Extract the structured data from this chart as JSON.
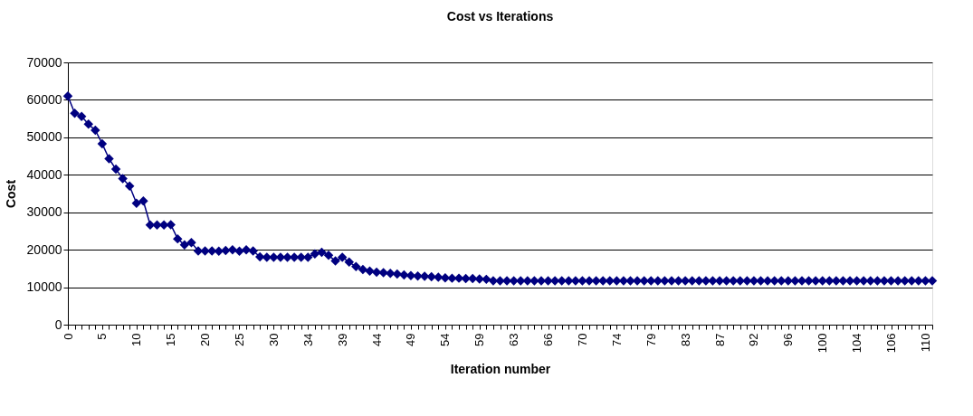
{
  "chart_data": {
    "type": "line",
    "title": "Cost vs Iterations",
    "xlabel": "Iteration number",
    "ylabel": "Cost",
    "categories": [
      "0",
      null,
      null,
      null,
      null,
      "5",
      null,
      null,
      null,
      null,
      "10",
      null,
      null,
      null,
      null,
      "15",
      null,
      null,
      null,
      null,
      "20",
      null,
      null,
      null,
      null,
      "25",
      null,
      null,
      null,
      null,
      "30",
      null,
      null,
      null,
      null,
      "34",
      null,
      null,
      null,
      null,
      "39",
      null,
      null,
      null,
      null,
      "44",
      null,
      null,
      null,
      null,
      "49",
      null,
      null,
      null,
      null,
      "54",
      null,
      null,
      null,
      null,
      "59",
      null,
      null,
      null,
      null,
      "63",
      null,
      null,
      null,
      null,
      "66",
      null,
      null,
      null,
      null,
      "70",
      null,
      null,
      null,
      null,
      "74",
      null,
      null,
      null,
      null,
      "79",
      null,
      null,
      null,
      null,
      "83",
      null,
      null,
      null,
      null,
      "87",
      null,
      null,
      null,
      null,
      "92",
      null,
      null,
      null,
      null,
      "96",
      null,
      null,
      null,
      null,
      "100",
      null,
      null,
      null,
      null,
      "104",
      null,
      null,
      null,
      null,
      "106",
      null,
      null,
      null,
      null,
      "110",
      null
    ],
    "series": [
      {
        "color": "#000080",
        "values": [
          61000,
          56400,
          55600,
          53500,
          51900,
          48300,
          44300,
          41500,
          39000,
          37000,
          32400,
          33000,
          26600,
          26600,
          26600,
          26700,
          22900,
          21300,
          21900,
          19700,
          19700,
          19700,
          19600,
          19800,
          20000,
          19600,
          20000,
          19700,
          18100,
          18000,
          18000,
          18000,
          18000,
          18000,
          18000,
          18000,
          18900,
          19300,
          18500,
          17000,
          18000,
          16700,
          15500,
          14700,
          14300,
          14000,
          13900,
          13700,
          13500,
          13300,
          13100,
          13000,
          12900,
          12800,
          12700,
          12500,
          12400,
          12400,
          12300,
          12300,
          12200,
          12100,
          11700,
          11700,
          11700,
          11700,
          11700,
          11700,
          11700,
          11700,
          11700,
          11700,
          11700,
          11700,
          11700,
          11700,
          11700,
          11700,
          11700,
          11700,
          11700,
          11700,
          11700,
          11700,
          11700,
          11700,
          11700,
          11700,
          11700,
          11700,
          11700,
          11700,
          11700,
          11700,
          11700,
          11700,
          11700,
          11700,
          11700,
          11700,
          11700,
          11700,
          11700,
          11700,
          11700,
          11700,
          11700,
          11700,
          11700,
          11700,
          11700,
          11700,
          11700,
          11700,
          11700,
          11700,
          11700,
          11700,
          11700,
          11700,
          11700,
          11700,
          11700,
          11700,
          11700,
          11700,
          11700
        ]
      }
    ],
    "ylim": [
      0,
      70000
    ],
    "yticks": [
      0,
      10000,
      20000,
      30000,
      40000,
      50000,
      60000,
      70000
    ],
    "grid": "y",
    "marker": "diamond",
    "line_style": "solid",
    "legend": false
  }
}
